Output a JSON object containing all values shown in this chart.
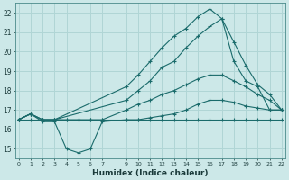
{
  "xlabel": "Humidex (Indice chaleur)",
  "bg_color": "#cce8e8",
  "grid_color": "#b0d5d5",
  "line_color": "#1a6b6b",
  "xlim": [
    -0.3,
    22.3
  ],
  "ylim": [
    14.5,
    22.5
  ],
  "xticks": [
    0,
    1,
    2,
    3,
    4,
    5,
    6,
    7,
    9,
    10,
    11,
    12,
    13,
    14,
    15,
    16,
    17,
    18,
    19,
    20,
    21,
    22
  ],
  "yticks": [
    15,
    16,
    17,
    18,
    19,
    20,
    21,
    22
  ],
  "lines": [
    {
      "x": [
        0,
        1,
        2,
        3,
        4,
        5,
        6,
        7,
        9,
        10,
        11,
        12,
        13,
        14,
        15,
        16,
        17,
        18,
        19,
        20,
        21,
        22
      ],
      "y": [
        16.5,
        16.5,
        16.5,
        16.5,
        16.5,
        16.5,
        16.5,
        16.5,
        16.5,
        16.5,
        16.5,
        16.5,
        16.5,
        16.5,
        16.5,
        16.5,
        16.5,
        16.5,
        16.5,
        16.5,
        16.5,
        16.5
      ]
    },
    {
      "x": [
        0,
        1,
        2,
        3,
        4,
        5,
        6,
        7,
        9,
        10,
        11,
        12,
        13,
        14,
        15,
        16,
        17,
        18,
        19,
        20,
        21,
        22
      ],
      "y": [
        16.5,
        16.8,
        16.4,
        16.4,
        15.0,
        14.8,
        15.0,
        16.4,
        16.5,
        16.5,
        16.6,
        16.7,
        16.8,
        17.0,
        17.3,
        17.5,
        17.5,
        17.4,
        17.2,
        17.1,
        17.0,
        17.0
      ]
    },
    {
      "x": [
        0,
        1,
        2,
        3,
        4,
        5,
        6,
        7,
        9,
        10,
        11,
        12,
        13,
        14,
        15,
        16,
        17,
        18,
        19,
        20,
        21,
        22
      ],
      "y": [
        16.5,
        16.8,
        16.5,
        16.5,
        16.5,
        16.5,
        16.5,
        16.5,
        17.0,
        17.3,
        17.5,
        17.8,
        18.0,
        18.3,
        18.6,
        18.8,
        18.8,
        18.5,
        18.2,
        17.8,
        17.5,
        17.0
      ]
    },
    {
      "x": [
        0,
        1,
        2,
        3,
        9,
        10,
        11,
        12,
        13,
        14,
        15,
        16,
        17,
        18,
        19,
        20,
        21,
        22
      ],
      "y": [
        16.5,
        16.8,
        16.5,
        16.5,
        17.5,
        18.0,
        18.5,
        19.2,
        19.5,
        20.2,
        20.8,
        21.3,
        21.7,
        19.5,
        18.5,
        18.2,
        17.0,
        17.0
      ]
    },
    {
      "x": [
        0,
        1,
        2,
        3,
        9,
        10,
        11,
        12,
        13,
        14,
        15,
        16,
        17,
        18,
        19,
        20,
        21,
        22
      ],
      "y": [
        16.5,
        16.8,
        16.5,
        16.5,
        18.2,
        18.8,
        19.5,
        20.2,
        20.8,
        21.2,
        21.8,
        22.2,
        21.7,
        20.5,
        19.3,
        18.3,
        17.8,
        17.0
      ]
    }
  ]
}
